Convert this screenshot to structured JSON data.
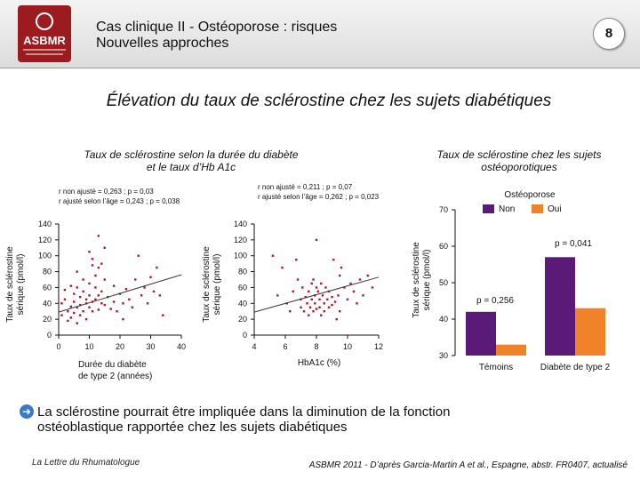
{
  "header": {
    "title_line1": "Cas clinique II - Ostéoporose : risques",
    "title_line2": "Nouvelles approches",
    "slide_number": "8",
    "logo_text": "ASBMR",
    "logo_subtext": "American Society for Bone and Mineral Research"
  },
  "main_title": "Élévation du taux de sclérostine chez les sujets diabétiques",
  "left_panel": {
    "title_line1": "Taux de sclérostine selon la durée du diabète",
    "title_line2": "et le taux d’Hb A1c"
  },
  "chart_data": [
    {
      "type": "scatter",
      "ylabel_line1": "Taux de sclérostine",
      "ylabel_line2": "sérique (pmol/l)",
      "xlabel_line1": "Durée du diabète",
      "xlabel_line2": "de type 2 (années)",
      "annotation_line1": "r non ajusté = 0,263 ; p = 0,03",
      "annotation_line2": "r ajusté selon l’âge = 0,243 ; p = 0,038",
      "xlim": [
        0,
        40
      ],
      "ylim": [
        0,
        140
      ],
      "xticks": [
        "0",
        "10",
        "20",
        "30",
        "40"
      ],
      "yticks": [
        "0",
        "20",
        "40",
        "60",
        "80",
        "100",
        "120",
        "140"
      ],
      "trend": [
        [
          0,
          29
        ],
        [
          40,
          76
        ]
      ],
      "points": [
        [
          1,
          40
        ],
        [
          1,
          25
        ],
        [
          2,
          57
        ],
        [
          2,
          45
        ],
        [
          3,
          30
        ],
        [
          3,
          18
        ],
        [
          4,
          62
        ],
        [
          4,
          36
        ],
        [
          4,
          22
        ],
        [
          5,
          52
        ],
        [
          5,
          42
        ],
        [
          5,
          28
        ],
        [
          6,
          80
        ],
        [
          6,
          60
        ],
        [
          6,
          35
        ],
        [
          6,
          15
        ],
        [
          7,
          48
        ],
        [
          7,
          38
        ],
        [
          7,
          25
        ],
        [
          8,
          70
        ],
        [
          8,
          55
        ],
        [
          8,
          30
        ],
        [
          9,
          45
        ],
        [
          9,
          40
        ],
        [
          9,
          20
        ],
        [
          10,
          105
        ],
        [
          10,
          65
        ],
        [
          10,
          50
        ],
        [
          10,
          35
        ],
        [
          11,
          96
        ],
        [
          11,
          88
        ],
        [
          11,
          42
        ],
        [
          11,
          30
        ],
        [
          12,
          75
        ],
        [
          12,
          60
        ],
        [
          12,
          45
        ],
        [
          13,
          125
        ],
        [
          13,
          85
        ],
        [
          13,
          50
        ],
        [
          13,
          32
        ],
        [
          14,
          90
        ],
        [
          14,
          55
        ],
        [
          14,
          40
        ],
        [
          15,
          110
        ],
        [
          15,
          70
        ],
        [
          15,
          38
        ],
        [
          16,
          48
        ],
        [
          17,
          33
        ],
        [
          18,
          62
        ],
        [
          18,
          42
        ],
        [
          19,
          30
        ],
        [
          20,
          52
        ],
        [
          21,
          40
        ],
        [
          21,
          20
        ],
        [
          22,
          58
        ],
        [
          23,
          45
        ],
        [
          24,
          35
        ],
        [
          25,
          70
        ],
        [
          26,
          100
        ],
        [
          27,
          50
        ],
        [
          28,
          60
        ],
        [
          29,
          40
        ],
        [
          30,
          73
        ],
        [
          31,
          55
        ],
        [
          32,
          85
        ],
        [
          33,
          50
        ],
        [
          34,
          25
        ]
      ]
    },
    {
      "type": "scatter",
      "ylabel_line1": "Taux de sclérostine",
      "ylabel_line2": "sérique (pmol/l)",
      "xlabel": "HbA1c (%)",
      "annotation_line1": "r non ajusté = 0,211 ; p = 0,07",
      "annotation_line2": "r ajusté selon l’âge = 0,262 ; p = 0,023",
      "xlim": [
        4,
        12
      ],
      "ylim": [
        0,
        140
      ],
      "xticks": [
        "4",
        "6",
        "8",
        "10",
        "12"
      ],
      "yticks": [
        "0",
        "20",
        "40",
        "60",
        "80",
        "100",
        "120",
        "140"
      ],
      "trend": [
        [
          4,
          29
        ],
        [
          12,
          73
        ]
      ],
      "points": [
        [
          5.2,
          100
        ],
        [
          5.5,
          50
        ],
        [
          5.8,
          85
        ],
        [
          6.1,
          40
        ],
        [
          6.3,
          30
        ],
        [
          6.5,
          55
        ],
        [
          6.7,
          95
        ],
        [
          6.8,
          70
        ],
        [
          7.0,
          45
        ],
        [
          7.0,
          35
        ],
        [
          7.1,
          60
        ],
        [
          7.2,
          30
        ],
        [
          7.3,
          48
        ],
        [
          7.4,
          40
        ],
        [
          7.5,
          55
        ],
        [
          7.5,
          25
        ],
        [
          7.6,
          35
        ],
        [
          7.7,
          65
        ],
        [
          7.7,
          45
        ],
        [
          7.8,
          30
        ],
        [
          7.8,
          70
        ],
        [
          7.9,
          50
        ],
        [
          7.9,
          40
        ],
        [
          8.0,
          60
        ],
        [
          8.0,
          33
        ],
        [
          8.0,
          120
        ],
        [
          8.1,
          55
        ],
        [
          8.2,
          45
        ],
        [
          8.2,
          35
        ],
        [
          8.3,
          65
        ],
        [
          8.3,
          25
        ],
        [
          8.4,
          50
        ],
        [
          8.5,
          40
        ],
        [
          8.5,
          30
        ],
        [
          8.6,
          60
        ],
        [
          8.7,
          45
        ],
        [
          8.8,
          35
        ],
        [
          8.8,
          55
        ],
        [
          9.0,
          48
        ],
        [
          9.0,
          38
        ],
        [
          9.1,
          95
        ],
        [
          9.2,
          42
        ],
        [
          9.3,
          20
        ],
        [
          9.4,
          50
        ],
        [
          9.5,
          75
        ],
        [
          9.5,
          30
        ],
        [
          9.6,
          85
        ],
        [
          9.8,
          60
        ],
        [
          10.0,
          45
        ],
        [
          10.2,
          65
        ],
        [
          10.4,
          55
        ],
        [
          10.6,
          40
        ],
        [
          10.8,
          70
        ],
        [
          11.0,
          50
        ],
        [
          11.3,
          75
        ],
        [
          11.6,
          60
        ]
      ]
    },
    {
      "type": "bar",
      "title_line1": "Taux de sclérostine chez les sujets",
      "title_line2": "ostéoporotiques",
      "ylabel_line1": "Taux de sclérostine",
      "ylabel_line2": "sérique (pmol/l)",
      "legend_title": "Ostéoporose",
      "legend_placement": "top",
      "categories": [
        "Témoins",
        "Diabète de type 2"
      ],
      "series": [
        {
          "name": "Non",
          "color": "#5a1a78",
          "values": [
            42,
            57
          ]
        },
        {
          "name": "Oui",
          "color": "#f0822a",
          "values": [
            33,
            43
          ]
        }
      ],
      "ylim": [
        30,
        70
      ],
      "yticks": [
        "30",
        "40",
        "50",
        "60",
        "70"
      ],
      "annotations": [
        "p = 0,041",
        "p = 0,256"
      ]
    }
  ],
  "colors": {
    "point": "#b0172a",
    "trend": "#3a3a3a",
    "accent": "#3a78c8"
  },
  "conclusion": {
    "line1": "La sclérostine pourrait être impliquée dans la diminution de la fonction",
    "line2": "ostéoblastique rapportée chez les sujets diabétiques"
  },
  "footer": {
    "left": "La Lettre du Rhumatologue",
    "right": "ASBMR 2011 - D’après Garcia-Martin A et al., Espagne, abstr. FR0407, actualisé"
  }
}
